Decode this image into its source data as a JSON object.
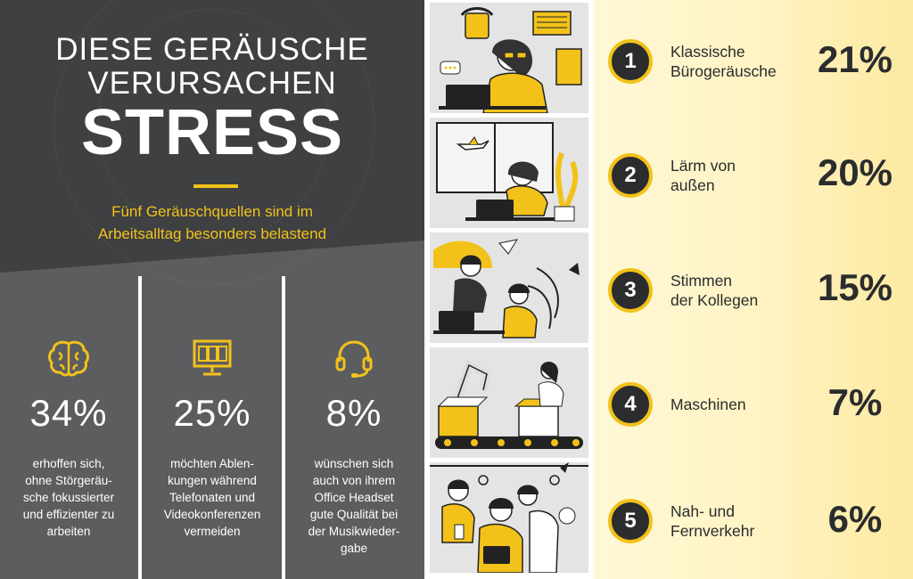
{
  "header": {
    "title_line1": "DIESE GERÄUSCHE",
    "title_line2": "VERURSACHEN",
    "title_line3": "STRESS",
    "subtitle_line1": "Fünf Geräuschquellen sind im",
    "subtitle_line2": "Arbeitsalltag besonders belastend"
  },
  "stats": [
    {
      "icon": "brain-icon",
      "value": "34%",
      "desc_lines": [
        "erhoffen sich,",
        "ohne Störgeräu-",
        "sche fokussierter",
        "und effizienter zu",
        "arbeiten"
      ]
    },
    {
      "icon": "monitor-video-call-icon",
      "value": "25%",
      "desc_lines": [
        "möchten Ablen-",
        "kungen während",
        "Telefonaten und",
        "Videokonferenzen",
        "vermeiden"
      ]
    },
    {
      "icon": "headset-icon",
      "value": "8%",
      "desc_lines": [
        "wünschen sich",
        "auch von ihrem",
        "Office Headset",
        "gute Qualität bei",
        "der Musikwieder-",
        "gabe"
      ]
    }
  ],
  "ranking": [
    {
      "rank": "1",
      "label_lines": [
        "Klassische",
        "Bürogeräusche"
      ],
      "percent": "21%",
      "illustration": "office-noise-illustration"
    },
    {
      "rank": "2",
      "label_lines": [
        "Lärm von",
        "außen"
      ],
      "percent": "20%",
      "illustration": "outside-noise-illustration"
    },
    {
      "rank": "3",
      "label_lines": [
        "Stimmen",
        "der Kollegen"
      ],
      "percent": "15%",
      "illustration": "colleagues-voices-illustration"
    },
    {
      "rank": "4",
      "label_lines": [
        "Maschinen"
      ],
      "percent": "7%",
      "illustration": "machines-illustration"
    },
    {
      "rank": "5",
      "label_lines": [
        "Nah- und",
        "Fernverkehr"
      ],
      "percent": "6%",
      "illustration": "traffic-illustration"
    }
  ],
  "colors": {
    "accent": "#f2c21a",
    "dark_gray": "#3f4042",
    "mid_gray": "#5c5d5f",
    "text_dark": "#2a2c2e"
  }
}
